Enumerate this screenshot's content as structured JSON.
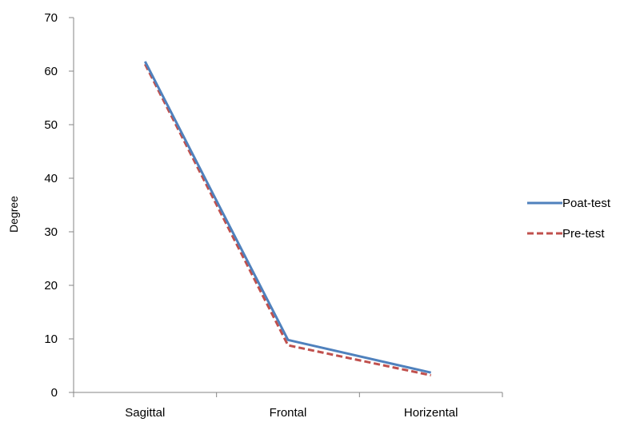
{
  "chart_data": {
    "type": "line",
    "title": "",
    "xlabel": "",
    "ylabel": "Degree",
    "categories": [
      "Sagittal",
      "Frontal",
      "Horizental"
    ],
    "ylim": [
      0,
      70
    ],
    "yticks": [
      0,
      10,
      20,
      30,
      40,
      50,
      60,
      70
    ],
    "grid": false,
    "legend_position": "right",
    "series": [
      {
        "name": "Poat-test",
        "values": [
          61.8,
          9.8,
          3.7
        ],
        "color": "#4F81BD",
        "dash": "solid"
      },
      {
        "name": "Pre-test",
        "values": [
          61.3,
          8.8,
          3.2
        ],
        "color": "#C0504D",
        "dash": "dashed"
      }
    ]
  }
}
